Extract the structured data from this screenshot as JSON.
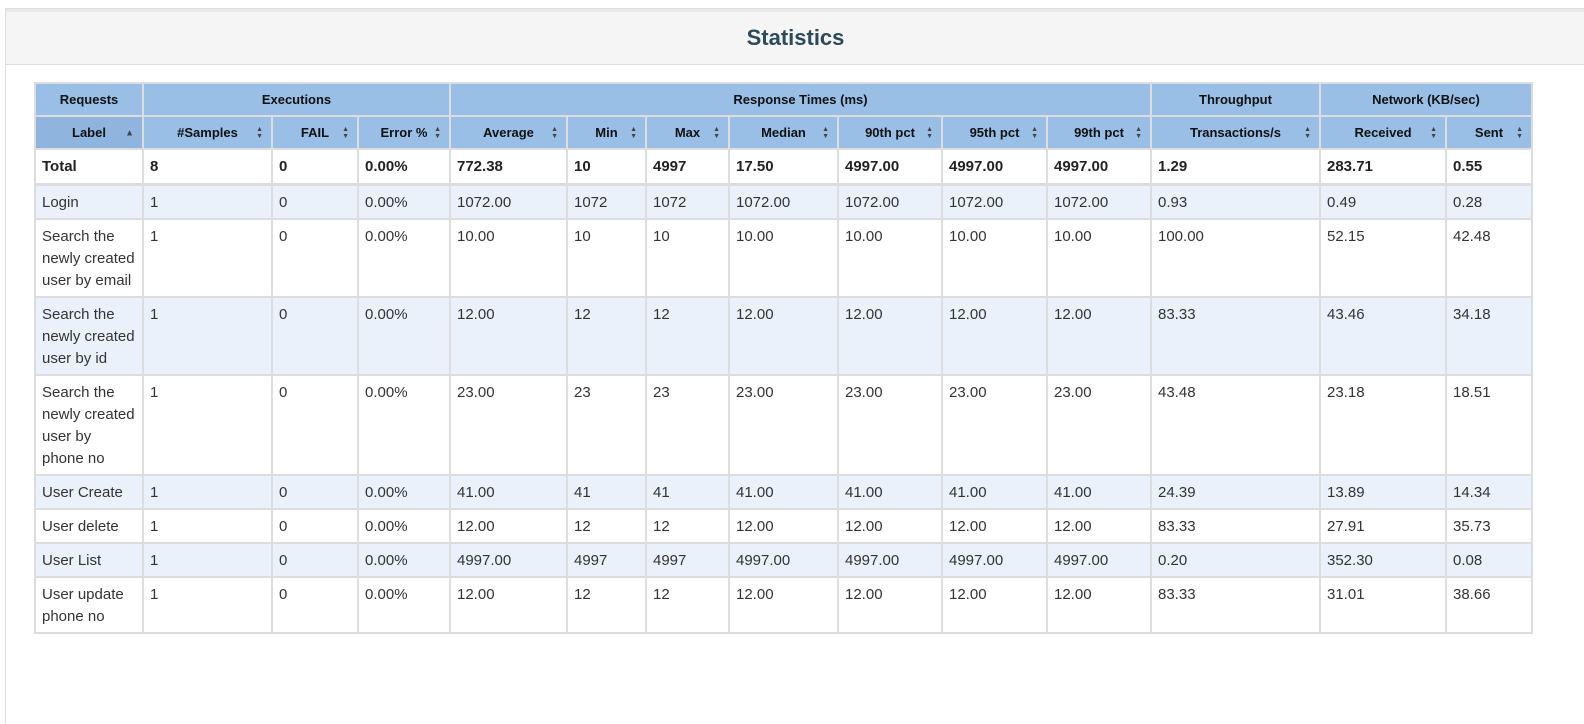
{
  "title": "Statistics",
  "colors": {
    "header_bg": "#99bfe6",
    "sorted_header_bg": "#8fb5df",
    "alt_row_bg": "#eaf1fa"
  },
  "groups": [
    {
      "label": "Requests",
      "span": 1
    },
    {
      "label": "Executions",
      "span": 3
    },
    {
      "label": "Response Times (ms)",
      "span": 7
    },
    {
      "label": "Throughput",
      "span": 1
    },
    {
      "label": "Network (KB/sec)",
      "span": 2
    }
  ],
  "columns": [
    {
      "label": "Label",
      "sort": "ascending"
    },
    {
      "label": "#Samples",
      "sort": "both"
    },
    {
      "label": "FAIL",
      "sort": "both"
    },
    {
      "label": "Error %",
      "sort": "both"
    },
    {
      "label": "Average",
      "sort": "both"
    },
    {
      "label": "Min",
      "sort": "both"
    },
    {
      "label": "Max",
      "sort": "both"
    },
    {
      "label": "Median",
      "sort": "both"
    },
    {
      "label": "90th pct",
      "sort": "both"
    },
    {
      "label": "95th pct",
      "sort": "both"
    },
    {
      "label": "99th pct",
      "sort": "both"
    },
    {
      "label": "Transactions/s",
      "sort": "both"
    },
    {
      "label": "Received",
      "sort": "both"
    },
    {
      "label": "Sent",
      "sort": "both"
    }
  ],
  "total": [
    "Total",
    "8",
    "0",
    "0.00%",
    "772.38",
    "10",
    "4997",
    "17.50",
    "4997.00",
    "4997.00",
    "4997.00",
    "1.29",
    "283.71",
    "0.55"
  ],
  "rows": [
    [
      "Login",
      "1",
      "0",
      "0.00%",
      "1072.00",
      "1072",
      "1072",
      "1072.00",
      "1072.00",
      "1072.00",
      "1072.00",
      "0.93",
      "0.49",
      "0.28"
    ],
    [
      "Search the newly created user by email",
      "1",
      "0",
      "0.00%",
      "10.00",
      "10",
      "10",
      "10.00",
      "10.00",
      "10.00",
      "10.00",
      "100.00",
      "52.15",
      "42.48"
    ],
    [
      "Search the newly created user by id",
      "1",
      "0",
      "0.00%",
      "12.00",
      "12",
      "12",
      "12.00",
      "12.00",
      "12.00",
      "12.00",
      "83.33",
      "43.46",
      "34.18"
    ],
    [
      "Search the newly created user by phone no",
      "1",
      "0",
      "0.00%",
      "23.00",
      "23",
      "23",
      "23.00",
      "23.00",
      "23.00",
      "23.00",
      "43.48",
      "23.18",
      "18.51"
    ],
    [
      "User Create",
      "1",
      "0",
      "0.00%",
      "41.00",
      "41",
      "41",
      "41.00",
      "41.00",
      "41.00",
      "41.00",
      "24.39",
      "13.89",
      "14.34"
    ],
    [
      "User delete",
      "1",
      "0",
      "0.00%",
      "12.00",
      "12",
      "12",
      "12.00",
      "12.00",
      "12.00",
      "12.00",
      "83.33",
      "27.91",
      "35.73"
    ],
    [
      "User List",
      "1",
      "0",
      "0.00%",
      "4997.00",
      "4997",
      "4997",
      "4997.00",
      "4997.00",
      "4997.00",
      "4997.00",
      "0.20",
      "352.30",
      "0.08"
    ],
    [
      "User update phone no",
      "1",
      "0",
      "0.00%",
      "12.00",
      "12",
      "12",
      "12.00",
      "12.00",
      "12.00",
      "12.00",
      "83.33",
      "31.01",
      "38.66"
    ]
  ]
}
